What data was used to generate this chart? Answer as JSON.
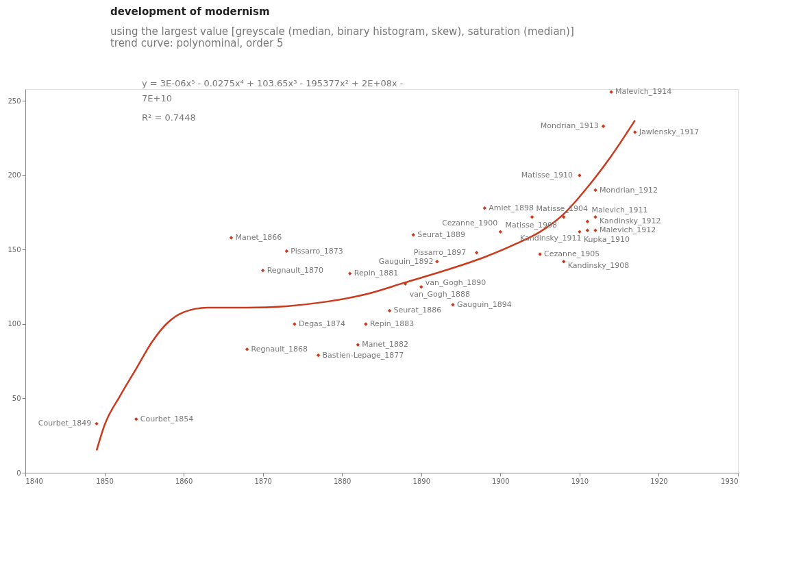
{
  "chart_data": {
    "type": "scatter",
    "title": "development of modernism",
    "subtitle": [
      "using the largest value [greyscale (median, binary histogram, skew), saturation (median)]",
      "trend curve: polynominal, order 5"
    ],
    "xlim": [
      1840,
      1930
    ],
    "xticks": [
      1840,
      1850,
      1860,
      1870,
      1880,
      1890,
      1900,
      1910,
      1920,
      1930
    ],
    "ylim": [
      0,
      258
    ],
    "yticks": [
      0,
      50,
      100,
      150,
      200,
      250
    ],
    "series": [
      {
        "type": "scatter",
        "color": "#cc3a1e",
        "marker": "diamond",
        "x": [
          1849,
          1854,
          1866,
          1868,
          1870,
          1873,
          1874,
          1877,
          1881,
          1882,
          1883,
          1886,
          1888,
          1889,
          1890,
          1892,
          1894,
          1897,
          1898,
          1900,
          1904,
          1905,
          1908,
          1908,
          1910,
          1910,
          1911,
          1911,
          1912,
          1912,
          1912,
          1913,
          1914,
          1917
        ],
        "values": [
          33,
          36,
          158,
          83,
          136,
          149,
          100,
          79,
          134,
          86,
          100,
          109,
          127,
          160,
          125,
          142,
          113,
          148,
          178,
          162,
          172,
          147,
          172,
          142,
          162,
          200,
          169,
          163,
          172,
          163,
          190,
          233,
          256,
          229
        ]
      },
      {
        "type": "line",
        "color": "#cc3a1e",
        "x": [
          1849,
          1850,
          1852,
          1854,
          1856,
          1858,
          1860,
          1863,
          1868,
          1873,
          1878,
          1883,
          1888,
          1893,
          1898,
          1902,
          1905,
          1908,
          1911,
          1914,
          1917
        ],
        "values": [
          15,
          32,
          52,
          70,
          88,
          101,
          108,
          111,
          111,
          112,
          115,
          120,
          128,
          136,
          145,
          154,
          162,
          174,
          192,
          213,
          237
        ]
      }
    ],
    "annotations": [
      "y = 3E-06x⁵ - 0.0275x⁴ + 103.65x³ - 195377x² + 2E+08x -",
      "7E+10",
      "R² = 0.7448",
      {
        "text": "Courbet_1849",
        "x": 1849,
        "y": 33
      },
      {
        "text": "Courbet_1854",
        "x": 1854,
        "y": 36
      },
      {
        "text": "Manet_1866",
        "x": 1866,
        "y": 158
      },
      {
        "text": "Regnault_1868",
        "x": 1868,
        "y": 83
      },
      {
        "text": "Regnault_1870",
        "x": 1870,
        "y": 136
      },
      {
        "text": "Pissarro_1873",
        "x": 1873,
        "y": 149
      },
      {
        "text": "Degas_1874",
        "x": 1874,
        "y": 100
      },
      {
        "text": "Bastien-Lepage_1877",
        "x": 1877,
        "y": 79
      },
      {
        "text": "Repin_1881",
        "x": 1881,
        "y": 134
      },
      {
        "text": "Manet_1882",
        "x": 1882,
        "y": 86
      },
      {
        "text": "Repin_1883",
        "x": 1883,
        "y": 100
      },
      {
        "text": "Seurat_1886",
        "x": 1886,
        "y": 109
      },
      {
        "text": "van_Gogh_1888",
        "x": 1888,
        "y": 127
      },
      {
        "text": "Seurat_1889",
        "x": 1889,
        "y": 160
      },
      {
        "text": "van_Gogh_1890",
        "x": 1890,
        "y": 125
      },
      {
        "text": "Gauguin_1892",
        "x": 1892,
        "y": 142
      },
      {
        "text": "Gauguin_1894",
        "x": 1894,
        "y": 113
      },
      {
        "text": "Pissarro_1897",
        "x": 1897,
        "y": 148
      },
      {
        "text": "Amiet_1898",
        "x": 1898,
        "y": 178
      },
      {
        "text": "Cezanne_1900",
        "x": 1900,
        "y": 162
      },
      {
        "text": "Matisse_1904",
        "x": 1904,
        "y": 172
      },
      {
        "text": "Cezanne_1905",
        "x": 1905,
        "y": 147
      },
      {
        "text": "Matisse_1908",
        "x": 1908,
        "y": 172
      },
      {
        "text": "Kandinsky_1908",
        "x": 1908,
        "y": 142
      },
      {
        "text": "Kupka_1910",
        "x": 1910,
        "y": 162
      },
      {
        "text": "Matisse_1910",
        "x": 1910,
        "y": 200
      },
      {
        "text": "Malevich_1911",
        "x": 1911,
        "y": 169
      },
      {
        "text": "Kandinsky_1911",
        "x": 1911,
        "y": 163
      },
      {
        "text": "Kandinsky_1912",
        "x": 1912,
        "y": 172
      },
      {
        "text": "Malevich_1912",
        "x": 1912,
        "y": 163
      },
      {
        "text": "Mondrian_1912",
        "x": 1912,
        "y": 190
      },
      {
        "text": "Mondrian_1913",
        "x": 1913,
        "y": 233
      },
      {
        "text": "Malevich_1914",
        "x": 1914,
        "y": 256
      },
      {
        "text": "Jawlensky_1917",
        "x": 1917,
        "y": 229
      }
    ]
  }
}
